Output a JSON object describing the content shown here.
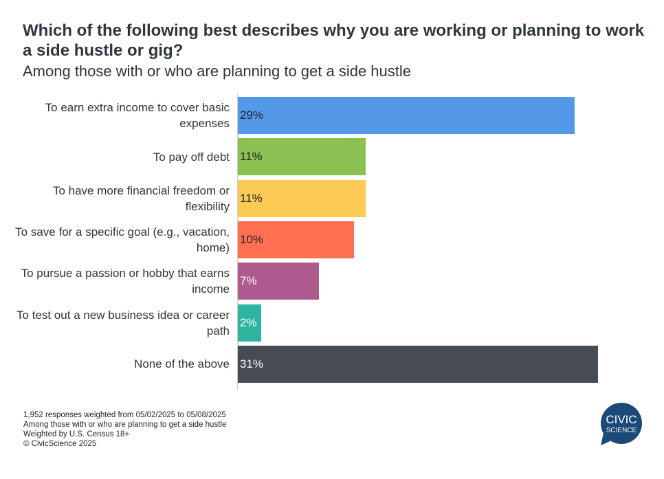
{
  "chart_data": {
    "type": "bar",
    "orientation": "horizontal",
    "title": "Which of the following best describes why you are working or planning to work a side hustle or gig?",
    "subtitle": "Among those with or who are planning to get a side hustle",
    "categories": [
      "To earn extra income to cover basic expenses",
      "To pay off debt",
      "To have more financial freedom or flexibility",
      "To save for a specific goal (e.g., vacation, home)",
      "To pursue a passion or hobby that earns income",
      "To test out a new business idea or career path",
      "None of the above"
    ],
    "values": [
      29,
      11,
      11,
      10,
      7,
      2,
      31
    ],
    "labels": [
      "29%",
      "11%",
      "11%",
      "10%",
      "7%",
      "2%",
      "31%"
    ],
    "colors": [
      "#5499e8",
      "#8bc153",
      "#fdcb55",
      "#ff7052",
      "#ae5a8e",
      "#2db5a0",
      "#464b55"
    ],
    "label_colors": [
      "#222",
      "#222",
      "#222",
      "#222",
      "#fff",
      "#fff",
      "#fff"
    ],
    "unit": "%"
  },
  "footer": [
    "1,952 responses weighted from 05/02/2025 to 05/08/2025",
    "Among those with or who are planning to get a side hustle",
    "Weighted by U.S. Census 18+",
    "© CivicScience 2025"
  ],
  "logo": {
    "line1": "CIVIC",
    "line2": "SCIENCE",
    "color": "#1b4a7a"
  }
}
